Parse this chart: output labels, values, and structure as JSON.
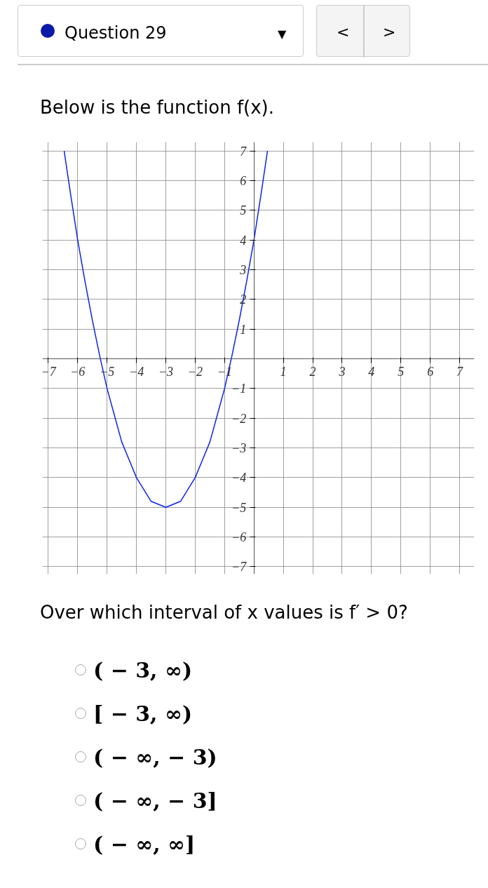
{
  "chart_data": {
    "type": "line",
    "title": "Below is the function f(x).",
    "annotations": [
      "Question 29",
      "<",
      ">",
      "▼",
      "Over which interval of x values is f′ > 0?",
      "( − 3, ∞)",
      "[ − 3, ∞)",
      "( − ∞, − 3)",
      "( − ∞, − 3]",
      "( − ∞, ∞]"
    ],
    "x": [
      -6.46,
      -6.25,
      -6,
      -5.75,
      -5.5,
      -5.25,
      -5,
      -4.75,
      -4.5,
      -4.25,
      -4,
      -3.75,
      -3.5,
      -3.25,
      -3,
      -2.75,
      -2.5,
      -2.25,
      -2,
      -1.75,
      -1.5,
      -1.25,
      -1,
      -0.75,
      -0.5,
      -0.25,
      0,
      0.25,
      0.46
    ],
    "values": [
      7,
      5.6,
      4,
      2.6,
      1.3,
      0.1,
      -1,
      -1.9,
      -2.8,
      -3.4,
      -4,
      -4.4,
      -4.8,
      -4.9,
      -5,
      -4.9,
      -4.8,
      -4.4,
      -4,
      -3.4,
      -2.8,
      -1.9,
      -1,
      0.1,
      1.3,
      2.6,
      4,
      5.6,
      7
    ],
    "color": "#0a24f0",
    "xlim": [
      -7.2,
      7.5
    ],
    "ylim": [
      -7.25,
      7.3
    ],
    "xticks": [
      -7,
      -6,
      -5,
      -4,
      -3,
      -2,
      -1,
      1,
      2,
      3,
      4,
      5,
      6,
      7
    ],
    "yticks": [
      -7,
      -6,
      -5,
      -4,
      -3,
      -2,
      -1,
      1,
      2,
      3,
      4,
      5,
      6,
      7
    ],
    "grid": true
  }
}
